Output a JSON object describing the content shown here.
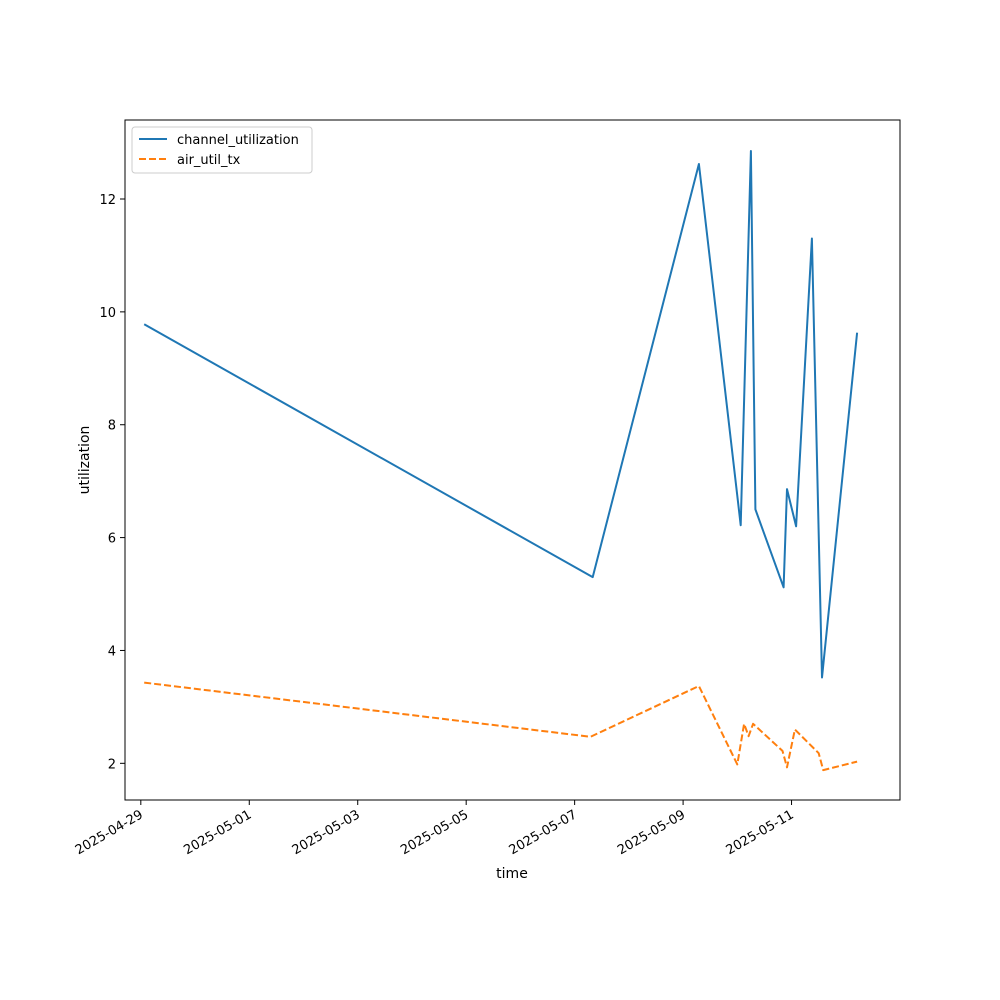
{
  "chart_data": {
    "type": "line",
    "title": "",
    "xlabel": "time",
    "ylabel": "utilization",
    "x_ticks": [
      "2025-04-29",
      "2025-05-01",
      "2025-05-03",
      "2025-05-05",
      "2025-05-07",
      "2025-05-09",
      "2025-05-11"
    ],
    "y_ticks": [
      2,
      4,
      6,
      8,
      10,
      12
    ],
    "xlim": [
      "2025-04-28 17:00",
      "2025-05-13 00:00"
    ],
    "ylim": [
      1.35,
      13.4
    ],
    "grid": false,
    "legend_position": "top-left",
    "series": [
      {
        "name": "channel_utilization",
        "color": "#1f77b4",
        "style": "solid",
        "points": [
          {
            "x": "2025-04-29 01:30",
            "y": 9.78
          },
          {
            "x": "2025-05-07 08:00",
            "y": 5.3
          },
          {
            "x": "2025-05-09 07:00",
            "y": 12.62
          },
          {
            "x": "2025-05-10 01:30",
            "y": 6.22
          },
          {
            "x": "2025-05-10 06:00",
            "y": 12.85
          },
          {
            "x": "2025-05-10 08:00",
            "y": 6.5
          },
          {
            "x": "2025-05-10 20:30",
            "y": 5.12
          },
          {
            "x": "2025-05-10 22:00",
            "y": 6.86
          },
          {
            "x": "2025-05-11 02:00",
            "y": 6.2
          },
          {
            "x": "2025-05-11 09:00",
            "y": 11.3
          },
          {
            "x": "2025-05-11 13:30",
            "y": 3.52
          },
          {
            "x": "2025-05-12 05:00",
            "y": 9.63
          }
        ]
      },
      {
        "name": "air_util_tx",
        "color": "#ff7f0e",
        "style": "dashed",
        "points": [
          {
            "x": "2025-04-29 01:30",
            "y": 3.43
          },
          {
            "x": "2025-05-07 07:00",
            "y": 2.47
          },
          {
            "x": "2025-05-09 07:00",
            "y": 3.37
          },
          {
            "x": "2025-05-10 00:00",
            "y": 1.98
          },
          {
            "x": "2025-05-10 03:00",
            "y": 2.7
          },
          {
            "x": "2025-05-10 05:00",
            "y": 2.48
          },
          {
            "x": "2025-05-10 07:00",
            "y": 2.7
          },
          {
            "x": "2025-05-10 20:00",
            "y": 2.22
          },
          {
            "x": "2025-05-10 22:00",
            "y": 1.93
          },
          {
            "x": "2025-05-11 01:30",
            "y": 2.6
          },
          {
            "x": "2025-05-11 12:00",
            "y": 2.18
          },
          {
            "x": "2025-05-11 14:00",
            "y": 1.88
          },
          {
            "x": "2025-05-12 05:00",
            "y": 2.03
          }
        ]
      }
    ]
  }
}
